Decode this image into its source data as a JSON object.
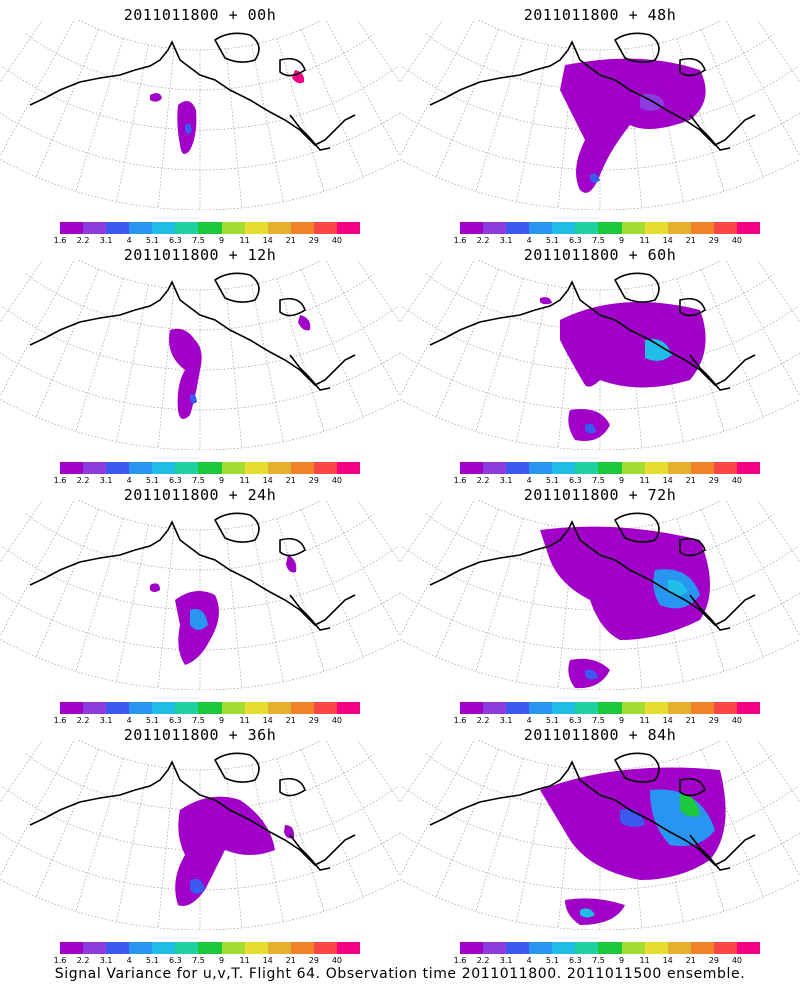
{
  "panels": [
    {
      "title": "2011011800 + 00h",
      "lead": "00h"
    },
    {
      "title": "2011011800 + 48h",
      "lead": "48h"
    },
    {
      "title": "2011011800 + 12h",
      "lead": "12h"
    },
    {
      "title": "2011011800 + 60h",
      "lead": "60h"
    },
    {
      "title": "2011011800 + 24h",
      "lead": "24h"
    },
    {
      "title": "2011011800 + 72h",
      "lead": "72h"
    },
    {
      "title": "2011011800 + 36h",
      "lead": "36h"
    },
    {
      "title": "2011011800 + 84h",
      "lead": "84h"
    }
  ],
  "colorbar": {
    "labels": [
      "1.6",
      "2.2",
      "3.1",
      "4",
      "5.1",
      "6.3",
      "7.5",
      "9",
      "11",
      "14",
      "21",
      "29",
      "40"
    ],
    "colors": [
      "#a000c8",
      "#8c3cdc",
      "#3c5af0",
      "#2896f0",
      "#1ebee6",
      "#1ed2a0",
      "#1ec83c",
      "#a0dc32",
      "#e6dc32",
      "#e6af2d",
      "#f08228",
      "#fa4646",
      "#f00082"
    ]
  },
  "caption": "Signal Variance for u,v,T. Flight 64. Observation time 2011011800. 2011011500 ensemble."
}
